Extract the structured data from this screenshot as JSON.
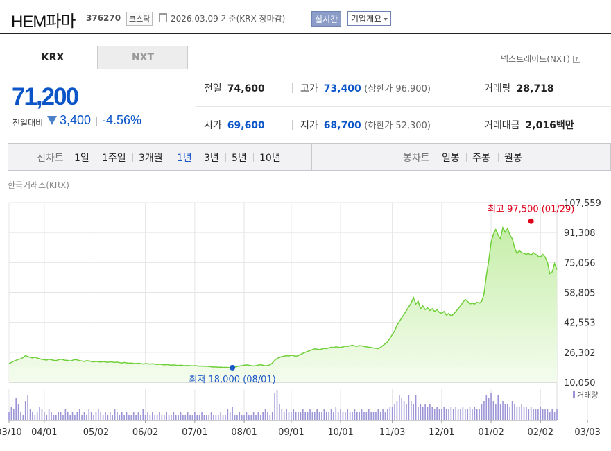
{
  "header": {
    "title": "HEM파마",
    "code": "376270",
    "market": "코스닥",
    "date_text": "2026.03.09 기준(KRX 장마감)",
    "realtime_button": "실시간",
    "company_info_button": "기업개요"
  },
  "tabs": {
    "krx": "KRX",
    "nxt": "NXT"
  },
  "nxt_link": "넥스트레이드(NXT)",
  "help_icon_text": "?",
  "price": {
    "current": "71,200",
    "change_label": "전일대비",
    "change": "3,400",
    "change_pct": "-4.56%",
    "down_color": "#0b55c8"
  },
  "stats": {
    "prev_close": {
      "label": "전일",
      "value": "74,600"
    },
    "high": {
      "label": "고가",
      "value": "73,400",
      "limit_label": "상한가",
      "limit_value": "96,900"
    },
    "volume": {
      "label": "거래량",
      "value": "28,718"
    },
    "open": {
      "label": "시가",
      "value": "69,600"
    },
    "low": {
      "label": "저가",
      "value": "68,700",
      "limit_label": "하한가",
      "limit_value": "52,300"
    },
    "trade_value": {
      "label": "거래대금",
      "value": "2,016",
      "unit": "백만"
    }
  },
  "period_bar": {
    "line_chart_label": "선차트",
    "line_periods": [
      "1일",
      "1주일",
      "3개월",
      "1년",
      "3년",
      "5년",
      "10년"
    ],
    "active_period": "1년",
    "candle_chart_label": "봉차트",
    "candle_periods": [
      "일봉",
      "주봉",
      "월봉"
    ]
  },
  "chart_source": "한국거래소(KRX)",
  "chart_data": {
    "type": "area",
    "y_ticks": [
      "107,559",
      "91,308",
      "75,056",
      "58,805",
      "42,553",
      "26,302",
      "10,050"
    ],
    "ylim": [
      10050,
      107559
    ],
    "x_ticks": [
      "03/10",
      "04/01",
      "05/02",
      "06/02",
      "07/01",
      "08/01",
      "09/01",
      "10/01",
      "11/03",
      "12/01",
      "01/02",
      "02/02",
      "03/03"
    ],
    "x_index_of_ticks": [
      0,
      15,
      37,
      58,
      79,
      100,
      120,
      141,
      163,
      184,
      205,
      226,
      246
    ],
    "series": [
      {
        "values": [
          20200,
          20800,
          21500,
          22000,
          22500,
          22800,
          23500,
          24500,
          24000,
          23600,
          23300,
          23700,
          23200,
          22800,
          22500,
          22300,
          22100,
          22600,
          22300,
          22000,
          21800,
          22200,
          22600,
          22300,
          22000,
          21900,
          21600,
          22000,
          22400,
          22200,
          21800,
          21600,
          21300,
          21800,
          21700,
          21300,
          21100,
          21400,
          21200,
          21000,
          21300,
          21100,
          20900,
          21200,
          21000,
          20800,
          21000,
          20700,
          20500,
          20800,
          20600,
          20400,
          20500,
          20300,
          20200,
          20400,
          20200,
          20000,
          20200,
          20100,
          19900,
          20100,
          19900,
          19700,
          19900,
          19700,
          19500,
          19700,
          19500,
          19300,
          19500,
          19300,
          19200,
          19400,
          19200,
          19100,
          19200,
          19100,
          19000,
          19100,
          19000,
          18800,
          18900,
          18700,
          18800,
          18600,
          18500,
          18300,
          18400,
          18200,
          18300,
          18100,
          18200,
          18100,
          18000,
          18100,
          18300,
          18600,
          18900,
          19100,
          19300,
          19500,
          19300,
          19100,
          18900,
          19100,
          19400,
          19600,
          19300,
          19000,
          19200,
          19500,
          20500,
          22000,
          23000,
          23500,
          24000,
          24200,
          24500,
          24300,
          24800,
          24500,
          24200,
          24500,
          25200,
          25800,
          26300,
          26800,
          27300,
          27800,
          28200,
          28000,
          27800,
          28100,
          28500,
          28300,
          28700,
          29100,
          28900,
          29300,
          29100,
          28900,
          29300,
          29700,
          29500,
          29900,
          30200,
          29800,
          29600,
          30000,
          29800,
          29500,
          29300,
          29100,
          28900,
          28700,
          28500,
          28300,
          29000,
          30000,
          31000,
          32000,
          34000,
          36000,
          38000,
          41000,
          43000,
          45000,
          47000,
          49000,
          51000,
          53000,
          56000,
          52500,
          54000,
          50000,
          51500,
          49500,
          50500,
          49000,
          50000,
          48500,
          49500,
          48000,
          47500,
          48500,
          46500,
          47500,
          46000,
          47000,
          48500,
          50000,
          51500,
          53500,
          55000,
          54000,
          52500,
          53000,
          52500,
          53500,
          53000,
          54000,
          58000,
          68000,
          76000,
          86000,
          90500,
          93000,
          90000,
          88000,
          94000,
          91500,
          93500,
          90000,
          88000,
          83000,
          80000,
          81500,
          80500,
          80000,
          79500,
          80000,
          79000,
          80500,
          79500,
          78500,
          78000,
          79500,
          78000,
          75000,
          69000,
          70000,
          74500,
          71200
        ]
      }
    ],
    "high_annotation": {
      "label": "최고 97,500 (01/29)",
      "value": 97500,
      "index": 222,
      "color": "#e0001a"
    },
    "low_annotation": {
      "label": "최저 18,000 (08/01)",
      "value": 18000,
      "index": 95,
      "color": "#1d58c7"
    },
    "volume_label": "거래량",
    "volume": [
      3,
      5,
      4,
      8,
      6,
      3,
      2,
      7,
      9,
      4,
      3,
      2,
      3,
      5,
      4,
      3,
      2,
      4,
      3,
      2,
      2,
      3,
      3,
      2,
      4,
      3,
      2,
      3,
      2,
      3,
      4,
      2,
      3,
      2,
      4,
      3,
      2,
      3,
      4,
      3,
      2,
      3,
      2,
      3,
      2,
      4,
      3,
      2,
      3,
      2,
      3,
      2,
      2,
      3,
      2,
      3,
      2,
      4,
      2,
      3,
      2,
      3,
      2,
      2,
      3,
      2,
      2,
      3,
      2,
      2,
      3,
      2,
      2,
      3,
      2,
      2,
      3,
      2,
      2,
      3,
      2,
      2,
      3,
      2,
      2,
      2,
      3,
      2,
      2,
      2,
      3,
      2,
      2,
      4,
      3,
      5,
      2,
      2,
      3,
      2,
      2,
      3,
      2,
      2,
      3,
      2,
      3,
      2,
      3,
      4,
      3,
      2,
      3,
      10,
      11,
      6,
      4,
      3,
      4,
      3,
      3,
      4,
      3,
      3,
      3,
      4,
      3,
      3,
      4,
      3,
      3,
      4,
      3,
      3,
      4,
      3,
      3,
      4,
      3,
      5,
      3,
      4,
      3,
      3,
      4,
      3,
      3,
      4,
      3,
      3,
      4,
      3,
      3,
      4,
      3,
      3,
      3,
      4,
      3,
      4,
      3,
      4,
      5,
      5,
      6,
      7,
      9,
      8,
      7,
      6,
      9,
      7,
      6,
      9,
      5,
      6,
      5,
      6,
      5,
      6,
      5,
      4,
      5,
      4,
      4,
      5,
      4,
      4,
      5,
      4,
      5,
      4,
      4,
      5,
      4,
      4,
      5,
      4,
      5,
      4,
      4,
      6,
      7,
      9,
      8,
      10,
      7,
      6,
      9,
      6,
      7,
      6,
      6,
      5,
      7,
      6,
      5,
      5,
      6,
      5,
      5,
      4,
      5,
      4,
      4,
      4,
      5,
      4,
      4,
      4,
      3,
      4,
      3,
      4
    ],
    "colors": {
      "line": "#6fcf38",
      "fill_top": "#c6eea9",
      "fill_bottom": "#f4fcee",
      "volume": "#9b94d6",
      "grid": "#e4e4e4"
    }
  }
}
